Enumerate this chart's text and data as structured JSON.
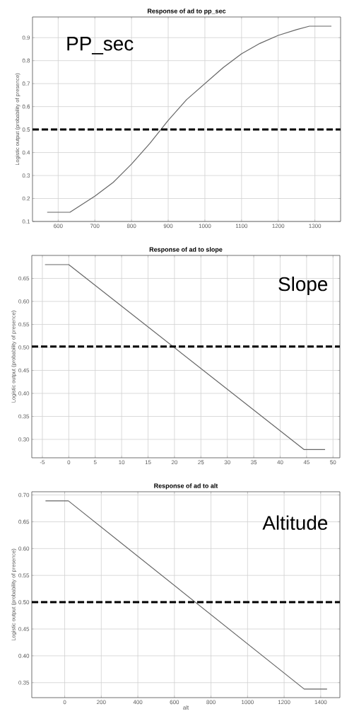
{
  "chart_data": [
    {
      "type": "line",
      "title": "Response of ad to pp_sec",
      "ylabel": "Logistic output (probability of presence)",
      "annotations": [
        "PP_sec"
      ],
      "grid": true,
      "xlim": [
        530,
        1370
      ],
      "ylim": [
        0.1,
        0.99
      ],
      "xticks": [
        600,
        700,
        800,
        900,
        1000,
        1100,
        1200,
        1300
      ],
      "yticks": [
        0.1,
        0.2,
        0.3,
        0.4,
        0.5,
        0.6,
        0.7,
        0.8,
        0.9
      ],
      "ref_lines": [
        {
          "axis": "y",
          "value": 0.5,
          "color": "#000000",
          "line_style": "dashed"
        }
      ],
      "series": [
        {
          "color": "#666666",
          "x": [
            570,
            632,
            700,
            750,
            800,
            850,
            880,
            900,
            950,
            1000,
            1050,
            1100,
            1150,
            1200,
            1250,
            1285,
            1345
          ],
          "values": [
            0.14,
            0.14,
            0.21,
            0.27,
            0.35,
            0.44,
            0.5,
            0.54,
            0.63,
            0.7,
            0.77,
            0.83,
            0.875,
            0.91,
            0.935,
            0.95,
            0.95
          ]
        }
      ]
    },
    {
      "type": "line",
      "title": "Response of ad to slope",
      "ylabel": "Logistic output (probability of presence)",
      "annotations": [
        "Slope"
      ],
      "grid": true,
      "xlim": [
        -7,
        51.3
      ],
      "ylim": [
        0.26,
        0.7
      ],
      "xticks": [
        -5,
        0,
        5,
        10,
        15,
        20,
        25,
        30,
        35,
        40,
        45,
        50
      ],
      "yticks": [
        {
          "value": 0.3,
          "label": "0.30"
        },
        {
          "value": 0.35,
          "label": "0.35"
        },
        {
          "value": 0.4,
          "label": "0.40"
        },
        {
          "value": 0.45,
          "label": "0.45"
        },
        {
          "value": 0.5,
          "label": "0.50"
        },
        {
          "value": 0.55,
          "label": "0.55"
        },
        {
          "value": 0.6,
          "label": "0.60"
        },
        {
          "value": 0.65,
          "label": "0.65"
        }
      ],
      "ref_lines": [
        {
          "axis": "y",
          "value": 0.502,
          "color": "#000000",
          "line_style": "dashed"
        }
      ],
      "series": [
        {
          "color": "#666666",
          "x": [
            -4.5,
            0,
            44.5,
            48.5
          ],
          "values": [
            0.68,
            0.68,
            0.278,
            0.278
          ]
        }
      ]
    },
    {
      "type": "line",
      "title": "Response of ad to alt",
      "xlabel": "alt",
      "ylabel": "Logistic output (probability of presence)",
      "annotations": [
        "Altitude"
      ],
      "grid": true,
      "xlim": [
        -180,
        1505
      ],
      "ylim": [
        0.322,
        0.706
      ],
      "xticks": [
        0,
        200,
        400,
        600,
        800,
        1000,
        1200,
        1400
      ],
      "yticks": [
        {
          "value": 0.35,
          "label": "0.35"
        },
        {
          "value": 0.4,
          "label": "0.40"
        },
        {
          "value": 0.45,
          "label": "0.45"
        },
        {
          "value": 0.5,
          "label": "0.50"
        },
        {
          "value": 0.55,
          "label": "0.55"
        },
        {
          "value": 0.6,
          "label": "0.60"
        },
        {
          "value": 0.65,
          "label": "0.65"
        },
        {
          "value": 0.7,
          "label": "0.70"
        }
      ],
      "ref_lines": [
        {
          "axis": "y",
          "value": 0.5,
          "color": "#000000",
          "line_style": "dashed"
        }
      ],
      "series": [
        {
          "color": "#666666",
          "x": [
            -105,
            20,
            1310,
            1435
          ],
          "values": [
            0.689,
            0.689,
            0.338,
            0.338
          ]
        }
      ]
    }
  ]
}
